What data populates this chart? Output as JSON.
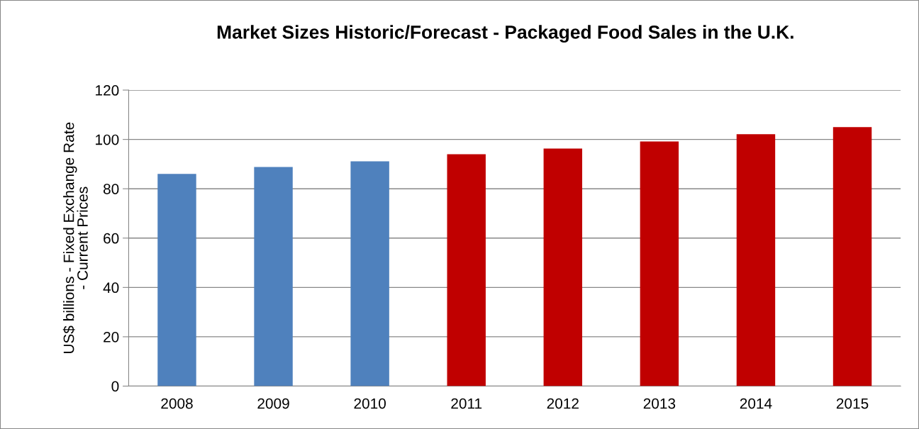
{
  "chart_data": {
    "type": "bar",
    "title": "Market Sizes Historic/Forecast - Packaged Food Sales in the U.K.",
    "ylabel": "US$ billions - Fixed Exchange Rate\n- Current Prices",
    "categories": [
      "2008",
      "2009",
      "2010",
      "2011",
      "2012",
      "2013",
      "2014",
      "2015"
    ],
    "values": [
      86,
      88.8,
      91.1,
      94,
      96.3,
      99.2,
      102.1,
      105
    ],
    "colors": [
      "#4f81bd",
      "#4f81bd",
      "#4f81bd",
      "#c00000",
      "#c00000",
      "#c00000",
      "#c00000",
      "#c00000"
    ],
    "ylim": [
      0,
      120
    ],
    "yticks": [
      0,
      20,
      40,
      60,
      80,
      100,
      120
    ],
    "grid": "y",
    "legend": false
  }
}
